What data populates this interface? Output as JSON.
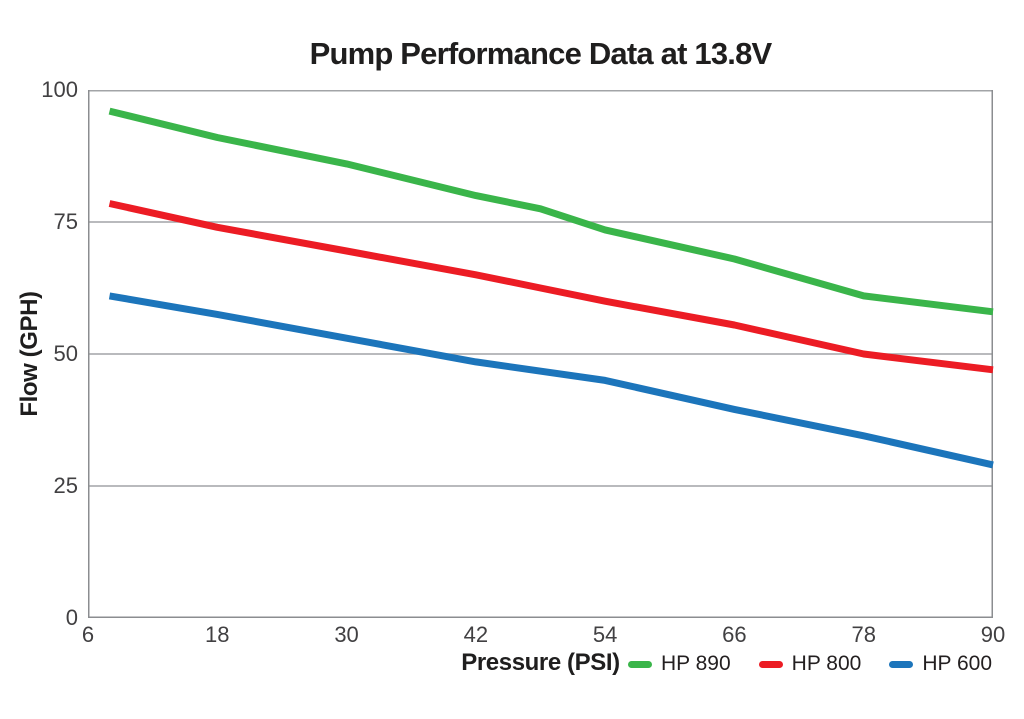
{
  "title": "Pump Performance Data at 13.8V",
  "colors": {
    "grid": "#a2a4a7",
    "axis": "#8b8d90",
    "title_text": "#1f1e1e",
    "tick_text": "#414042",
    "green": "#3ab54a",
    "red": "#ec1c24",
    "blue": "#1c75bb"
  },
  "chart_data": {
    "type": "line",
    "title": "Pump Performance Data at 13.8V",
    "xlabel": "Pressure (PSI)",
    "ylabel": "Flow (GPH)",
    "xlim": [
      6,
      90
    ],
    "ylim": [
      0,
      100
    ],
    "x_ticks": [
      6,
      18,
      30,
      42,
      54,
      66,
      78,
      90
    ],
    "y_ticks": [
      0,
      25,
      50,
      75,
      100
    ],
    "grid": "horizontal",
    "legend_position": "bottom-right",
    "series": [
      {
        "name": "HP 890",
        "color": "#3ab54a",
        "points": [
          [
            8,
            96
          ],
          [
            18,
            91
          ],
          [
            30,
            86
          ],
          [
            42,
            80
          ],
          [
            48,
            77.5
          ],
          [
            54,
            73.5
          ],
          [
            66,
            68
          ],
          [
            78,
            61
          ],
          [
            90,
            58
          ]
        ]
      },
      {
        "name": "HP 800",
        "color": "#ec1c24",
        "points": [
          [
            8,
            78.5
          ],
          [
            18,
            74
          ],
          [
            30,
            69.5
          ],
          [
            42,
            65
          ],
          [
            48,
            62.5
          ],
          [
            54,
            60
          ],
          [
            66,
            55.5
          ],
          [
            78,
            50
          ],
          [
            90,
            47
          ]
        ]
      },
      {
        "name": "HP 600",
        "color": "#1c75bb",
        "points": [
          [
            8,
            61
          ],
          [
            18,
            57.5
          ],
          [
            30,
            53
          ],
          [
            42,
            48.5
          ],
          [
            54,
            45
          ],
          [
            66,
            39.5
          ],
          [
            78,
            34.5
          ],
          [
            90,
            29
          ]
        ]
      }
    ]
  }
}
